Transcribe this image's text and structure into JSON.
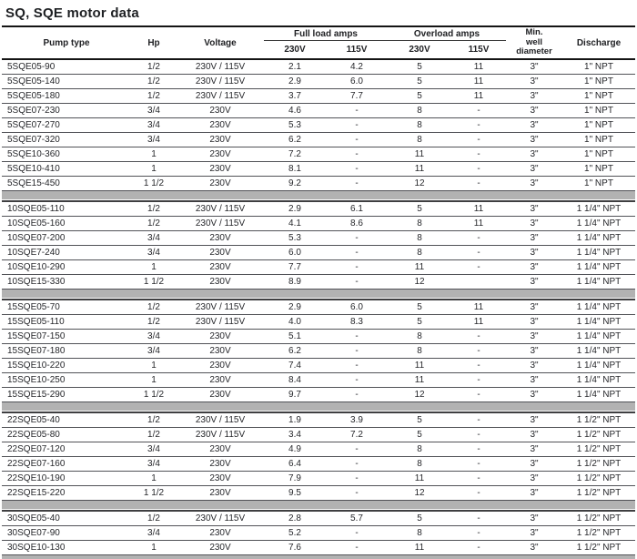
{
  "title": "SQ, SQE motor data",
  "colors": {
    "separator_gray": "#b2b2b2",
    "rule_dark": "#141414",
    "row_rule": "#515257",
    "text": "#26272b"
  },
  "table": {
    "headers": {
      "pump_type": "Pump type",
      "hp": "Hp",
      "voltage": "Voltage",
      "full_load_amps": "Full load amps",
      "overload_amps": "Overload amps",
      "full_load_230v": "230V",
      "full_load_115v": "115V",
      "overload_230v": "230V",
      "overload_115v": "115V",
      "min_well_diameter": "Min.\nwell\ndiameter",
      "discharge": "Discharge"
    },
    "sections": [
      {
        "rows": [
          [
            "5SQE05-90",
            "1/2",
            "230V / 115V",
            "2.1",
            "4.2",
            "5",
            "11",
            "3\"",
            "1\" NPT"
          ],
          [
            "5SQE05-140",
            "1/2",
            "230V / 115V",
            "2.9",
            "6.0",
            "5",
            "11",
            "3\"",
            "1\" NPT"
          ],
          [
            "5SQE05-180",
            "1/2",
            "230V / 115V",
            "3.7",
            "7.7",
            "5",
            "11",
            "3\"",
            "1\" NPT"
          ],
          [
            "5SQE07-230",
            "3/4",
            "230V",
            "4.6",
            "-",
            "8",
            "-",
            "3\"",
            "1\" NPT"
          ],
          [
            "5SQE07-270",
            "3/4",
            "230V",
            "5.3",
            "-",
            "8",
            "-",
            "3\"",
            "1\" NPT"
          ],
          [
            "5SQE07-320",
            "3/4",
            "230V",
            "6.2",
            "-",
            "8",
            "-",
            "3\"",
            "1\" NPT"
          ],
          [
            "5SQE10-360",
            "1",
            "230V",
            "7.2",
            "-",
            "11",
            "-",
            "3\"",
            "1\" NPT"
          ],
          [
            "5SQE10-410",
            "1",
            "230V",
            "8.1",
            "-",
            "11",
            "-",
            "3\"",
            "1\" NPT"
          ],
          [
            "5SQE15-450",
            "1 1/2",
            "230V",
            "9.2",
            "-",
            "12",
            "-",
            "3\"",
            "1\" NPT"
          ]
        ]
      },
      {
        "rows": [
          [
            "10SQE05-110",
            "1/2",
            "230V / 115V",
            "2.9",
            "6.1",
            "5",
            "11",
            "3\"",
            "1 1/4\" NPT"
          ],
          [
            "10SQE05-160",
            "1/2",
            "230V / 115V",
            "4.1",
            "8.6",
            "8",
            "11",
            "3\"",
            "1 1/4\" NPT"
          ],
          [
            "10SQE07-200",
            "3/4",
            "230V",
            "5.3",
            "-",
            "8",
            "-",
            "3\"",
            "1 1/4\" NPT"
          ],
          [
            "10SQE7-240",
            "3/4",
            "230V",
            "6.0",
            "-",
            "8",
            "-",
            "3\"",
            "1 1/4\" NPT"
          ],
          [
            "10SQE10-290",
            "1",
            "230V",
            "7.7",
            "-",
            "11",
            "-",
            "3\"",
            "1 1/4\" NPT"
          ],
          [
            "10SQE15-330",
            "1 1/2",
            "230V",
            "8.9",
            "-",
            "12",
            "",
            "3\"",
            "1 1/4\" NPT"
          ]
        ]
      },
      {
        "rows": [
          [
            "15SQE05-70",
            "1/2",
            "230V / 115V",
            "2.9",
            "6.0",
            "5",
            "11",
            "3\"",
            "1 1/4\" NPT"
          ],
          [
            "15SQE05-110",
            "1/2",
            "230V / 115V",
            "4.0",
            "8.3",
            "5",
            "11",
            "3\"",
            "1 1/4\" NPT"
          ],
          [
            "15SQE07-150",
            "3/4",
            "230V",
            "5.1",
            "-",
            "8",
            "-",
            "3\"",
            "1 1/4\" NPT"
          ],
          [
            "15SQE07-180",
            "3/4",
            "230V",
            "6.2",
            "-",
            "8",
            "-",
            "3\"",
            "1 1/4\" NPT"
          ],
          [
            "15SQE10-220",
            "1",
            "230V",
            "7.4",
            "-",
            "11",
            "-",
            "3\"",
            "1 1/4\" NPT"
          ],
          [
            "15SQE10-250",
            "1",
            "230V",
            "8.4",
            "-",
            "11",
            "-",
            "3\"",
            "1 1/4\" NPT"
          ],
          [
            "15SQE15-290",
            "1 1/2",
            "230V",
            "9.7",
            "-",
            "12",
            "-",
            "3\"",
            "1 1/4\" NPT"
          ]
        ]
      },
      {
        "rows": [
          [
            "22SQE05-40",
            "1/2",
            "230V / 115V",
            "1.9",
            "3.9",
            "5",
            "-",
            "3\"",
            "1 1/2\" NPT"
          ],
          [
            "22SQE05-80",
            "1/2",
            "230V / 115V",
            "3.4",
            "7.2",
            "5",
            "-",
            "3\"",
            "1 1/2\" NPT"
          ],
          [
            "22SQE07-120",
            "3/4",
            "230V",
            "4.9",
            "-",
            "8",
            "-",
            "3\"",
            "1 1/2\" NPT"
          ],
          [
            "22SQE07-160",
            "3/4",
            "230V",
            "6.4",
            "-",
            "8",
            "-",
            "3\"",
            "1 1/2\" NPT"
          ],
          [
            "22SQE10-190",
            "1",
            "230V",
            "7.9",
            "-",
            "11",
            "-",
            "3\"",
            "1 1/2\" NPT"
          ],
          [
            "22SQE15-220",
            "1 1/2",
            "230V",
            "9.5",
            "-",
            "12",
            "-",
            "3\"",
            "1 1/2\" NPT"
          ]
        ]
      },
      {
        "rows": [
          [
            "30SQE05-40",
            "1/2",
            "230V / 115V",
            "2.8",
            "5.7",
            "5",
            "-",
            "3\"",
            "1 1/2\" NPT"
          ],
          [
            "30SQE07-90",
            "3/4",
            "230V",
            "5.2",
            "-",
            "8",
            "-",
            "3\"",
            "1 1/2\" NPT"
          ],
          [
            "30SQE10-130",
            "1",
            "230V",
            "7.6",
            "-",
            "11",
            "-",
            "3\"",
            "1 1/2\" NPT"
          ]
        ]
      }
    ]
  }
}
